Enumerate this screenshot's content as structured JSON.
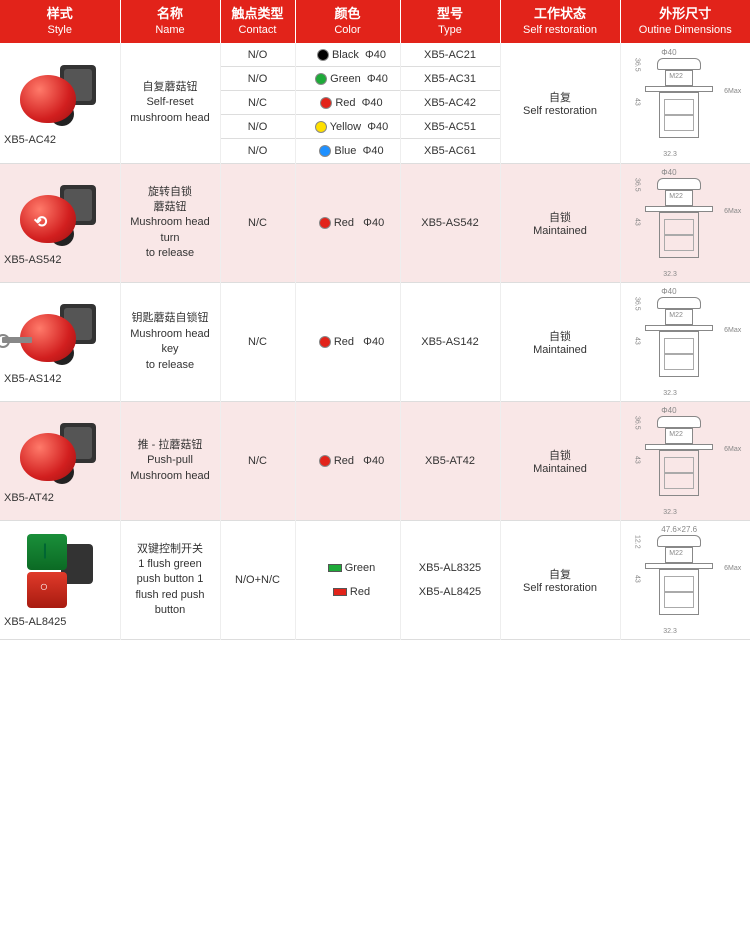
{
  "headers": [
    {
      "cn": "样式",
      "en": "Style"
    },
    {
      "cn": "名称",
      "en": "Name"
    },
    {
      "cn": "触点类型",
      "en": "Contact"
    },
    {
      "cn": "颜色",
      "en": "Color"
    },
    {
      "cn": "型号",
      "en": "Type"
    },
    {
      "cn": "工作状态",
      "en": "Self restoration"
    },
    {
      "cn": "外形尺寸",
      "en": "Outine Dimensions"
    }
  ],
  "colors": {
    "header_bg": "#e2231a",
    "header_text": "#ffffff",
    "alt_row_bg": "#f9e7e7",
    "border": "#dddddd",
    "black": "#000000",
    "green": "#1eaa39",
    "red": "#e2231a",
    "yellow": "#ffe000",
    "blue": "#1e90ff"
  },
  "diagram": {
    "top": "Φ40",
    "neck": "M22",
    "h1": "36.5",
    "h2": "43",
    "w": "32.3",
    "max": "6Max"
  },
  "diagram_dual": {
    "top": "47.6×27.6",
    "neck": "M22",
    "h1": "12.2",
    "h2": "43",
    "w": "32.3",
    "max": "6Max"
  },
  "rows": [
    {
      "part": "XB5-AC42",
      "name_cn": "自复蘑菇钮",
      "name_en": "Self-reset mushroom head",
      "variant": "mushroom",
      "sub": [
        {
          "contact": "N/O",
          "color_key": "black",
          "color_label": "Black",
          "size": "Φ40",
          "type": "XB5-AC21"
        },
        {
          "contact": "N/O",
          "color_key": "green",
          "color_label": "Green",
          "size": "Φ40",
          "type": "XB5-AC31"
        },
        {
          "contact": "N/C",
          "color_key": "red",
          "color_label": "Red",
          "size": "Φ40",
          "type": "XB5-AC42"
        },
        {
          "contact": "N/O",
          "color_key": "yellow",
          "color_label": "Yellow",
          "size": "Φ40",
          "type": "XB5-AC51"
        },
        {
          "contact": "N/O",
          "color_key": "blue",
          "color_label": "Blue",
          "size": "Φ40",
          "type": "XB5-AC61"
        }
      ],
      "state_cn": "自复",
      "state_en": "Self restoration",
      "alt": false
    },
    {
      "part": "XB5-AS542",
      "name_cn": "旋转自锁\n蘑菇钮",
      "name_en": "Mushroom head turn to release",
      "variant": "mushroom-arrow",
      "sub": [
        {
          "contact": "N/C",
          "color_key": "red",
          "color_label": "Red",
          "size": "Φ40",
          "type": "XB5-AS542"
        }
      ],
      "state_cn": "自锁",
      "state_en": "Maintained",
      "alt": true
    },
    {
      "part": "XB5-AS142",
      "name_cn": "钥匙蘑菇自锁钮",
      "name_en": "Mushroom head key to release",
      "variant": "mushroom-key",
      "sub": [
        {
          "contact": "N/C",
          "color_key": "red",
          "color_label": "Red",
          "size": "Φ40",
          "type": "XB5-AS142"
        }
      ],
      "state_cn": "自锁",
      "state_en": "Maintained",
      "alt": false
    },
    {
      "part": "XB5-AT42",
      "name_cn": "推 - 拉蘑菇钮",
      "name_en": "Push-pull Mushroom head",
      "variant": "mushroom",
      "sub": [
        {
          "contact": "N/C",
          "color_key": "red",
          "color_label": "Red",
          "size": "Φ40",
          "type": "XB5-AT42"
        }
      ],
      "state_cn": "自锁",
      "state_en": "Maintained",
      "alt": true
    },
    {
      "part": "XB5-AL8425",
      "name_cn": "双键控制开关",
      "name_en": "1 flush green push button 1 flush red push button",
      "variant": "dual",
      "contact_combined": "N/O+N/C",
      "colors_list": [
        {
          "color_key": "green",
          "color_label": "Green",
          "type": "XB5-AL8325",
          "shape": "sq"
        },
        {
          "color_key": "red",
          "color_label": "Red",
          "type": "XB5-AL8425",
          "shape": "sq"
        }
      ],
      "state_cn": "自复",
      "state_en": "Self restoration",
      "alt": false,
      "diagram": "dual"
    }
  ]
}
